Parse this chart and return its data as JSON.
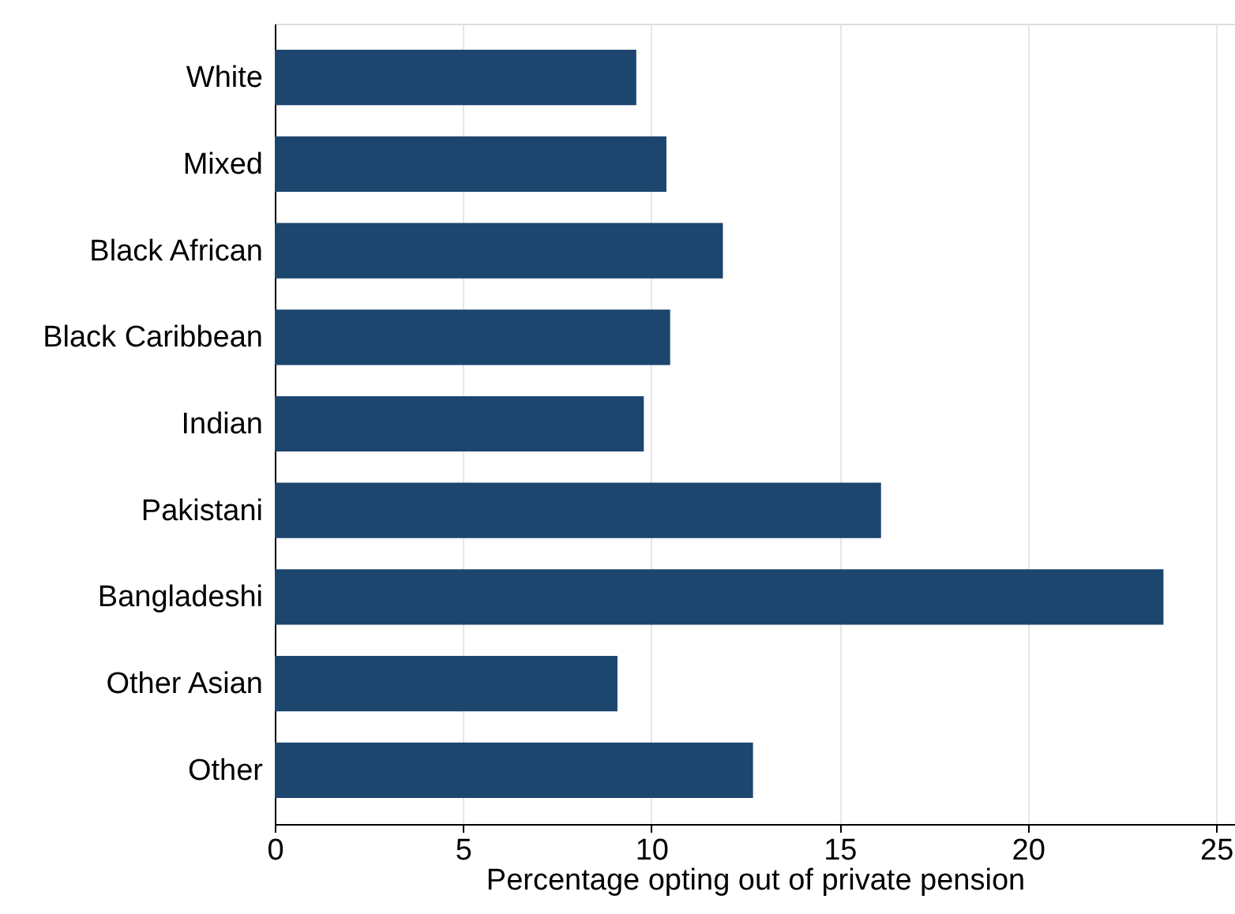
{
  "chart_data": {
    "type": "bar",
    "orientation": "horizontal",
    "xlabel": "Percentage opting out of private pension",
    "categories": [
      "White",
      "Mixed",
      "Black African",
      "Black Caribbean",
      "Indian",
      "Pakistani",
      "Bangladeshi",
      "Other Asian",
      "Other"
    ],
    "values": [
      9.6,
      10.4,
      11.9,
      10.5,
      9.8,
      16.1,
      23.6,
      9.1,
      12.7
    ],
    "color": "#1c466e",
    "xlim": [
      0,
      25.5
    ],
    "xticks": [
      0,
      5,
      10,
      15,
      20,
      25
    ],
    "grid": "x"
  }
}
